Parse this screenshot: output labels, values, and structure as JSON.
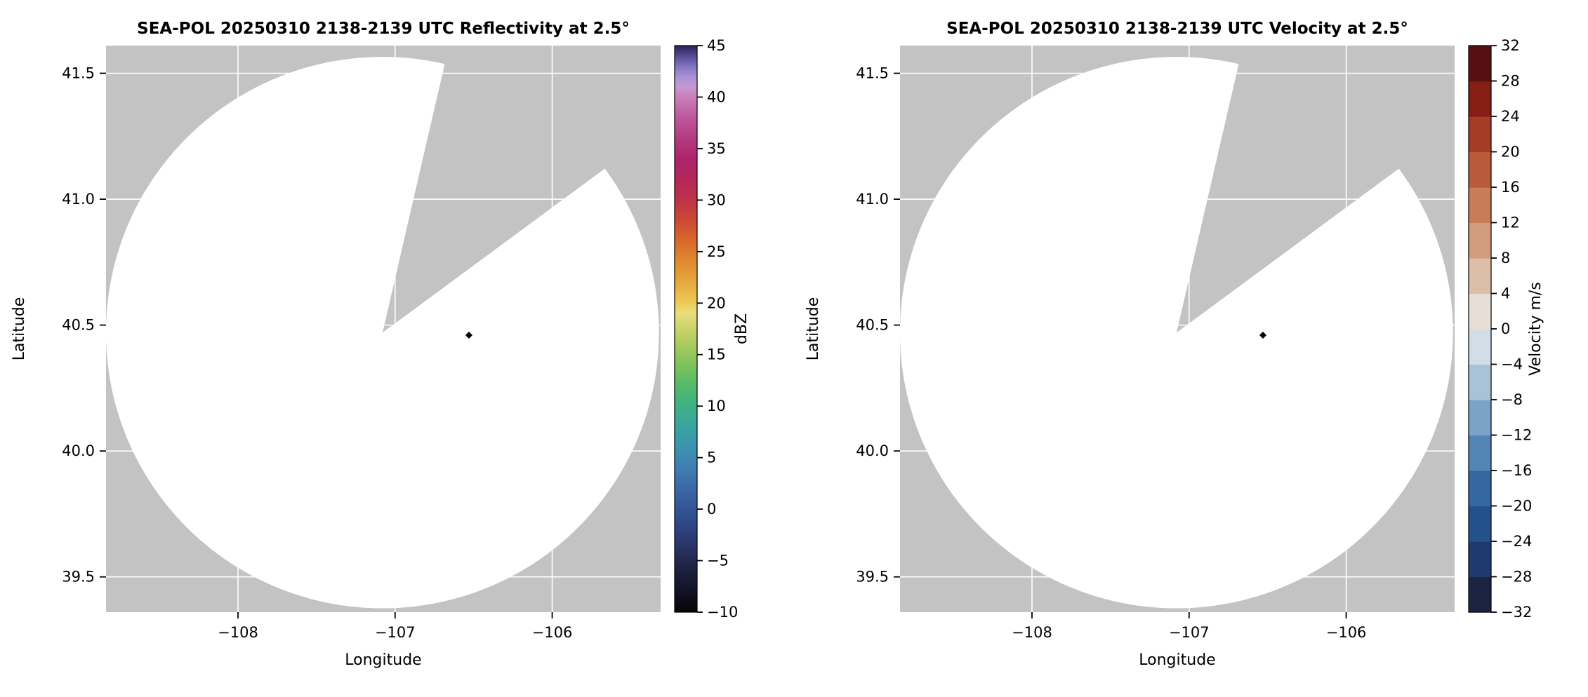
{
  "figure": {
    "background": "#ffffff"
  },
  "chart_data": [
    {
      "type": "radar_ppi",
      "panel": "reflectivity",
      "title": "SEA-POL 20250310 2138-2139 UTC Reflectivity at 2.5°",
      "xlabel": "Longitude",
      "ylabel": "Latitude",
      "xlim": [
        -108.84,
        -105.31
      ],
      "ylim": [
        39.36,
        41.61
      ],
      "grid": true,
      "xticks": [
        {
          "value": -108,
          "label": "−108"
        },
        {
          "value": -107,
          "label": "−107"
        },
        {
          "value": -106,
          "label": "−106"
        }
      ],
      "yticks": [
        {
          "value": 41.5,
          "label": "41.5"
        },
        {
          "value": 41.0,
          "label": "41.0"
        },
        {
          "value": 40.5,
          "label": "40.5"
        },
        {
          "value": 40.0,
          "label": "40.0"
        },
        {
          "value": 39.5,
          "label": "39.5"
        }
      ],
      "scan": {
        "center": {
          "lon": -107.08,
          "lat": 40.47
        },
        "radius_deg_lon": 1.76,
        "radius_deg_lat": 1.095,
        "blocked_sector_azimuth_deg": [
          13,
          53.5
        ],
        "scan_fill": "#ffffff",
        "nodata_fill": "#c3c3c3",
        "grid_color": "#ffffff"
      },
      "radar_marker": {
        "lon": -106.53,
        "lat": 40.46,
        "shape": "diamond",
        "color": "#000000"
      },
      "colorbar": {
        "label": "dBZ",
        "min": -10,
        "max": 45,
        "style": "continuous",
        "ticks": [
          {
            "value": 45,
            "label": "45"
          },
          {
            "value": 40,
            "label": "40"
          },
          {
            "value": 35,
            "label": "35"
          },
          {
            "value": 30,
            "label": "30"
          },
          {
            "value": 25,
            "label": "25"
          },
          {
            "value": 20,
            "label": "20"
          },
          {
            "value": 15,
            "label": "15"
          },
          {
            "value": 10,
            "label": "10"
          },
          {
            "value": 5,
            "label": "5"
          },
          {
            "value": 0,
            "label": "0"
          },
          {
            "value": -5,
            "label": "−5"
          },
          {
            "value": -10,
            "label": "−10"
          }
        ],
        "gradient_stops": [
          {
            "value": -10,
            "color": "#050505"
          },
          {
            "value": -8,
            "color": "#121226"
          },
          {
            "value": -6,
            "color": "#1d2040"
          },
          {
            "value": -4,
            "color": "#27315f"
          },
          {
            "value": -2,
            "color": "#2e427e"
          },
          {
            "value": 0,
            "color": "#335494"
          },
          {
            "value": 2,
            "color": "#3a68a8"
          },
          {
            "value": 4,
            "color": "#3e7eb2"
          },
          {
            "value": 6,
            "color": "#3d92b0"
          },
          {
            "value": 8,
            "color": "#3aa4a0"
          },
          {
            "value": 10,
            "color": "#3db184"
          },
          {
            "value": 12,
            "color": "#55ba6a"
          },
          {
            "value": 14,
            "color": "#7ec25c"
          },
          {
            "value": 16,
            "color": "#aacb5e"
          },
          {
            "value": 18,
            "color": "#d5d66c"
          },
          {
            "value": 19,
            "color": "#e9df7e"
          },
          {
            "value": 20,
            "color": "#eccb58"
          },
          {
            "value": 22,
            "color": "#e7a93e"
          },
          {
            "value": 24,
            "color": "#e08a30"
          },
          {
            "value": 26,
            "color": "#d9692c"
          },
          {
            "value": 28,
            "color": "#cc4933"
          },
          {
            "value": 30,
            "color": "#bf3247"
          },
          {
            "value": 32,
            "color": "#b42659"
          },
          {
            "value": 34,
            "color": "#ae246b"
          },
          {
            "value": 36,
            "color": "#b43a82"
          },
          {
            "value": 38,
            "color": "#bf589b"
          },
          {
            "value": 40,
            "color": "#c87fba"
          },
          {
            "value": 41,
            "color": "#c59ad2"
          },
          {
            "value": 42,
            "color": "#a890d6"
          },
          {
            "value": 43,
            "color": "#8274bf"
          },
          {
            "value": 44,
            "color": "#564a94"
          },
          {
            "value": 45,
            "color": "#2a2152"
          }
        ]
      }
    },
    {
      "type": "radar_ppi",
      "panel": "velocity",
      "title": "SEA-POL 20250310 2138-2139 UTC Velocity at 2.5°",
      "xlabel": "Longitude",
      "ylabel": "Latitude",
      "xlim": [
        -108.84,
        -105.31
      ],
      "ylim": [
        39.36,
        41.61
      ],
      "grid": true,
      "xticks": [
        {
          "value": -108,
          "label": "−108"
        },
        {
          "value": -107,
          "label": "−107"
        },
        {
          "value": -106,
          "label": "−106"
        }
      ],
      "yticks": [
        {
          "value": 41.5,
          "label": "41.5"
        },
        {
          "value": 41.0,
          "label": "41.0"
        },
        {
          "value": 40.5,
          "label": "40.5"
        },
        {
          "value": 40.0,
          "label": "40.0"
        },
        {
          "value": 39.5,
          "label": "39.5"
        }
      ],
      "scan": {
        "center": {
          "lon": -107.08,
          "lat": 40.47
        },
        "radius_deg_lon": 1.76,
        "radius_deg_lat": 1.095,
        "blocked_sector_azimuth_deg": [
          13,
          53.5
        ],
        "scan_fill": "#ffffff",
        "nodata_fill": "#c3c3c3",
        "grid_color": "#ffffff"
      },
      "radar_marker": {
        "lon": -106.53,
        "lat": 40.46,
        "shape": "diamond",
        "color": "#000000"
      },
      "colorbar": {
        "label": "Velocity m/s",
        "min": -32,
        "max": 32,
        "style": "discrete",
        "ticks": [
          {
            "value": 32,
            "label": "32"
          },
          {
            "value": 28,
            "label": "28"
          },
          {
            "value": 24,
            "label": "24"
          },
          {
            "value": 20,
            "label": "20"
          },
          {
            "value": 16,
            "label": "16"
          },
          {
            "value": 12,
            "label": "12"
          },
          {
            "value": 8,
            "label": "8"
          },
          {
            "value": 4,
            "label": "4"
          },
          {
            "value": 0,
            "label": "0"
          },
          {
            "value": -4,
            "label": "−4"
          },
          {
            "value": -8,
            "label": "−8"
          },
          {
            "value": -12,
            "label": "−12"
          },
          {
            "value": -16,
            "label": "−16"
          },
          {
            "value": -20,
            "label": "−20"
          },
          {
            "value": -24,
            "label": "−24"
          },
          {
            "value": -28,
            "label": "−28"
          },
          {
            "value": -32,
            "label": "−32"
          }
        ],
        "bin_step": 4,
        "bin_colors_low_to_high": [
          "#1a2440",
          "#1f3a6e",
          "#24518c",
          "#3568a1",
          "#5284b4",
          "#7ba3c8",
          "#a8c2d8",
          "#d3dde6",
          "#e7ded8",
          "#ddbfa9",
          "#d39d7d",
          "#c87c58",
          "#b95a3a",
          "#a43c26",
          "#851f16",
          "#570e10"
        ]
      }
    }
  ]
}
